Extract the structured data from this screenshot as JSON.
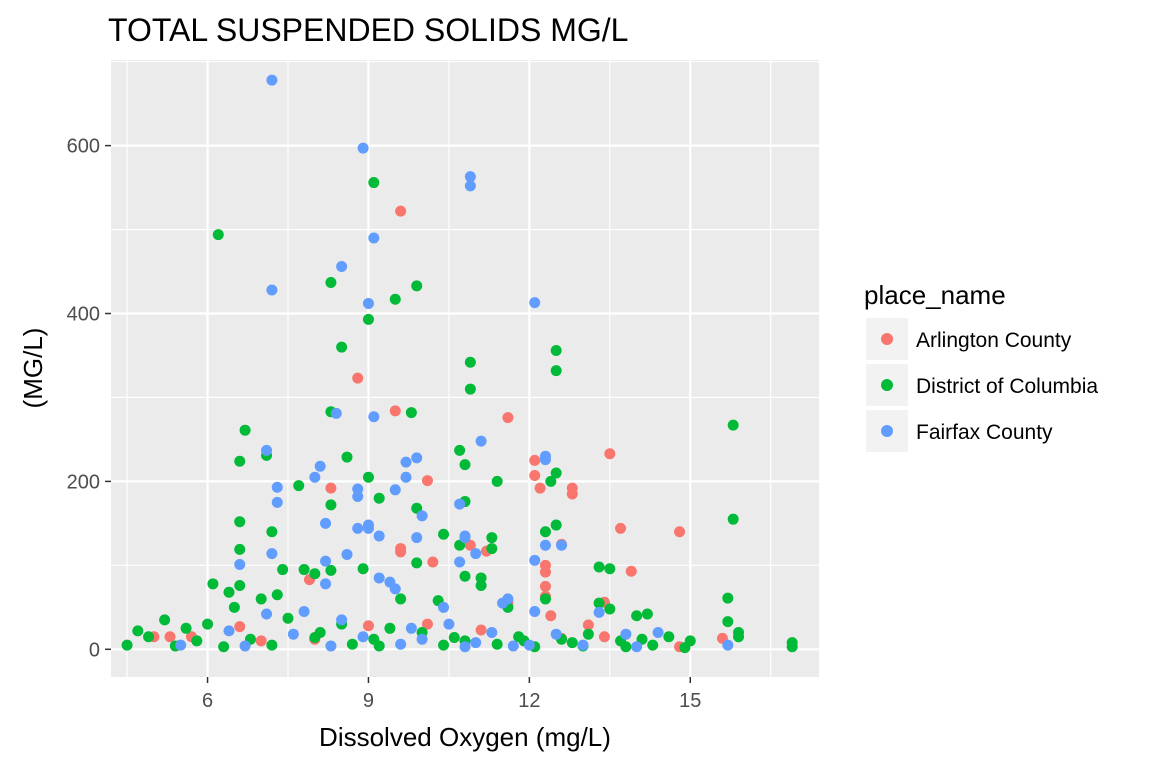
{
  "chart_data": {
    "type": "scatter",
    "title": "TOTAL SUSPENDED SOLIDS MG/L",
    "xlabel": "Dissolved Oxygen (mg/L)",
    "ylabel": "(MG/L)",
    "xlim": [
      4.2,
      17.4
    ],
    "ylim": [
      -33,
      702
    ],
    "x_ticks": [
      6,
      9,
      12,
      15
    ],
    "x_tick_labels": [
      "6",
      "9",
      "12",
      "15"
    ],
    "y_ticks": [
      0,
      200,
      400,
      600
    ],
    "y_tick_labels": [
      "0",
      "200",
      "400",
      "600"
    ],
    "grid": true,
    "legend_title": "place_name",
    "legend_position": "right",
    "series": [
      {
        "name": "Arlington County",
        "color": "#F8766D",
        "points": [
          [
            9.6,
            522
          ],
          [
            8.8,
            323
          ],
          [
            9.5,
            284
          ],
          [
            11.6,
            276
          ],
          [
            13.5,
            233
          ],
          [
            12.1,
            225
          ],
          [
            12.1,
            207
          ],
          [
            12.2,
            192
          ],
          [
            12.8,
            192
          ],
          [
            12.8,
            185
          ],
          [
            10.1,
            201
          ],
          [
            13.7,
            144
          ],
          [
            14.8,
            140
          ],
          [
            10.9,
            124
          ],
          [
            11.2,
            117
          ],
          [
            9.6,
            120
          ],
          [
            9.6,
            116
          ],
          [
            12.6,
            125
          ],
          [
            13.9,
            93
          ],
          [
            12.3,
            100
          ],
          [
            12.3,
            92
          ],
          [
            12.3,
            75
          ],
          [
            7.9,
            83
          ],
          [
            12.3,
            63
          ],
          [
            13.4,
            56
          ],
          [
            11.6,
            56
          ],
          [
            8.3,
            192
          ],
          [
            10.2,
            104
          ],
          [
            5.0,
            15
          ],
          [
            5.3,
            15
          ],
          [
            5.7,
            15
          ],
          [
            6.6,
            27
          ],
          [
            9.0,
            28
          ],
          [
            10.1,
            30
          ],
          [
            13.1,
            29
          ],
          [
            13.4,
            15
          ],
          [
            14.8,
            3
          ],
          [
            15.6,
            13
          ],
          [
            12.6,
            13
          ],
          [
            11.1,
            23
          ],
          [
            8.0,
            12
          ],
          [
            7.0,
            10
          ],
          [
            12.4,
            40
          ]
        ]
      },
      {
        "name": "District of Columbia",
        "color": "#00BA38",
        "points": [
          [
            6.2,
            494
          ],
          [
            9.1,
            556
          ],
          [
            8.3,
            437
          ],
          [
            9.9,
            433
          ],
          [
            9.5,
            417
          ],
          [
            9.0,
            393
          ],
          [
            8.5,
            360
          ],
          [
            10.9,
            342
          ],
          [
            12.5,
            356
          ],
          [
            12.5,
            332
          ],
          [
            10.9,
            310
          ],
          [
            8.3,
            283
          ],
          [
            9.8,
            282
          ],
          [
            15.8,
            267
          ],
          [
            6.7,
            261
          ],
          [
            7.1,
            231
          ],
          [
            6.6,
            224
          ],
          [
            8.6,
            229
          ],
          [
            10.7,
            237
          ],
          [
            10.8,
            220
          ],
          [
            12.5,
            210
          ],
          [
            12.4,
            200
          ],
          [
            11.4,
            200
          ],
          [
            7.7,
            195
          ],
          [
            9.0,
            205
          ],
          [
            9.2,
            180
          ],
          [
            10.8,
            176
          ],
          [
            9.9,
            168
          ],
          [
            8.3,
            172
          ],
          [
            15.8,
            155
          ],
          [
            12.5,
            148
          ],
          [
            6.6,
            152
          ],
          [
            7.2,
            140
          ],
          [
            12.3,
            140
          ],
          [
            11.3,
            133
          ],
          [
            10.4,
            137
          ],
          [
            6.6,
            119
          ],
          [
            10.7,
            124
          ],
          [
            11.3,
            120
          ],
          [
            9.9,
            103
          ],
          [
            8.9,
            96
          ],
          [
            13.3,
            98
          ],
          [
            13.5,
            96
          ],
          [
            7.4,
            95
          ],
          [
            6.6,
            76
          ],
          [
            6.1,
            78
          ],
          [
            7.8,
            95
          ],
          [
            8.0,
            90
          ],
          [
            8.3,
            94
          ],
          [
            11.1,
            85
          ],
          [
            11.1,
            76
          ],
          [
            10.8,
            87
          ],
          [
            15.7,
            61
          ],
          [
            6.4,
            68
          ],
          [
            7.3,
            65
          ],
          [
            9.6,
            60
          ],
          [
            10.3,
            58
          ],
          [
            11.6,
            50
          ],
          [
            12.3,
            60
          ],
          [
            13.5,
            48
          ],
          [
            14.0,
            40
          ],
          [
            14.2,
            42
          ],
          [
            13.3,
            55
          ],
          [
            7.0,
            60
          ],
          [
            6.5,
            50
          ],
          [
            5.2,
            35
          ],
          [
            4.7,
            22
          ],
          [
            4.9,
            15
          ],
          [
            5.6,
            25
          ],
          [
            6.0,
            30
          ],
          [
            7.5,
            37
          ],
          [
            8.5,
            30
          ],
          [
            8.1,
            20
          ],
          [
            9.4,
            25
          ],
          [
            10.0,
            20
          ],
          [
            10.8,
            10
          ],
          [
            11.8,
            15
          ],
          [
            12.6,
            12
          ],
          [
            13.1,
            18
          ],
          [
            13.7,
            10
          ],
          [
            14.3,
            5
          ],
          [
            14.6,
            15
          ],
          [
            15.0,
            10
          ],
          [
            16.9,
            8
          ],
          [
            16.9,
            3
          ],
          [
            15.9,
            20
          ],
          [
            15.9,
            15
          ],
          [
            4.5,
            5
          ],
          [
            5.4,
            4
          ],
          [
            6.3,
            3
          ],
          [
            7.2,
            5
          ],
          [
            8.7,
            6
          ],
          [
            9.2,
            4
          ],
          [
            10.4,
            5
          ],
          [
            11.4,
            6
          ],
          [
            12.1,
            3
          ],
          [
            13.0,
            4
          ],
          [
            13.8,
            3
          ],
          [
            14.9,
            2
          ],
          [
            5.8,
            10
          ],
          [
            6.8,
            12
          ],
          [
            8.0,
            14
          ],
          [
            9.1,
            12
          ],
          [
            10.6,
            14
          ],
          [
            11.9,
            10
          ],
          [
            12.8,
            8
          ],
          [
            14.1,
            12
          ],
          [
            15.7,
            33
          ]
        ]
      },
      {
        "name": "Fairfax County",
        "color": "#619CFF",
        "points": [
          [
            7.2,
            678
          ],
          [
            8.9,
            597
          ],
          [
            10.9,
            563
          ],
          [
            10.9,
            552
          ],
          [
            9.1,
            490
          ],
          [
            8.5,
            456
          ],
          [
            7.2,
            428
          ],
          [
            9.0,
            412
          ],
          [
            12.1,
            413
          ],
          [
            8.4,
            281
          ],
          [
            9.1,
            277
          ],
          [
            11.1,
            248
          ],
          [
            7.1,
            237
          ],
          [
            12.3,
            230
          ],
          [
            12.3,
            226
          ],
          [
            9.9,
            228
          ],
          [
            9.7,
            223
          ],
          [
            8.1,
            218
          ],
          [
            7.3,
            193
          ],
          [
            8.8,
            191
          ],
          [
            9.5,
            190
          ],
          [
            8.8,
            182
          ],
          [
            9.7,
            205
          ],
          [
            8.0,
            205
          ],
          [
            7.3,
            175
          ],
          [
            10.7,
            173
          ],
          [
            10.0,
            159
          ],
          [
            8.2,
            150
          ],
          [
            9.0,
            148
          ],
          [
            9.0,
            144
          ],
          [
            8.8,
            144
          ],
          [
            10.8,
            135
          ],
          [
            10.8,
            133
          ],
          [
            9.9,
            133
          ],
          [
            9.2,
            135
          ],
          [
            12.6,
            124
          ],
          [
            12.3,
            124
          ],
          [
            11.0,
            114
          ],
          [
            7.2,
            114
          ],
          [
            8.6,
            113
          ],
          [
            8.2,
            105
          ],
          [
            12.1,
            106
          ],
          [
            6.6,
            101
          ],
          [
            10.7,
            104
          ],
          [
            9.2,
            85
          ],
          [
            9.4,
            80
          ],
          [
            8.2,
            78
          ],
          [
            9.5,
            72
          ],
          [
            11.6,
            60
          ],
          [
            11.5,
            55
          ],
          [
            10.4,
            50
          ],
          [
            12.1,
            45
          ],
          [
            13.3,
            44
          ],
          [
            7.1,
            42
          ],
          [
            7.8,
            45
          ],
          [
            8.5,
            35
          ],
          [
            9.8,
            25
          ],
          [
            10.5,
            30
          ],
          [
            11.3,
            20
          ],
          [
            12.5,
            18
          ],
          [
            13.8,
            18
          ],
          [
            14.4,
            20
          ],
          [
            6.4,
            22
          ],
          [
            7.6,
            18
          ],
          [
            8.9,
            15
          ],
          [
            10.0,
            12
          ],
          [
            11.0,
            8
          ],
          [
            12.0,
            5
          ],
          [
            13.0,
            5
          ],
          [
            14.0,
            3
          ],
          [
            15.7,
            5
          ],
          [
            5.5,
            5
          ],
          [
            6.7,
            4
          ],
          [
            8.3,
            4
          ],
          [
            9.6,
            6
          ],
          [
            10.8,
            3
          ],
          [
            11.7,
            4
          ]
        ]
      }
    ]
  }
}
